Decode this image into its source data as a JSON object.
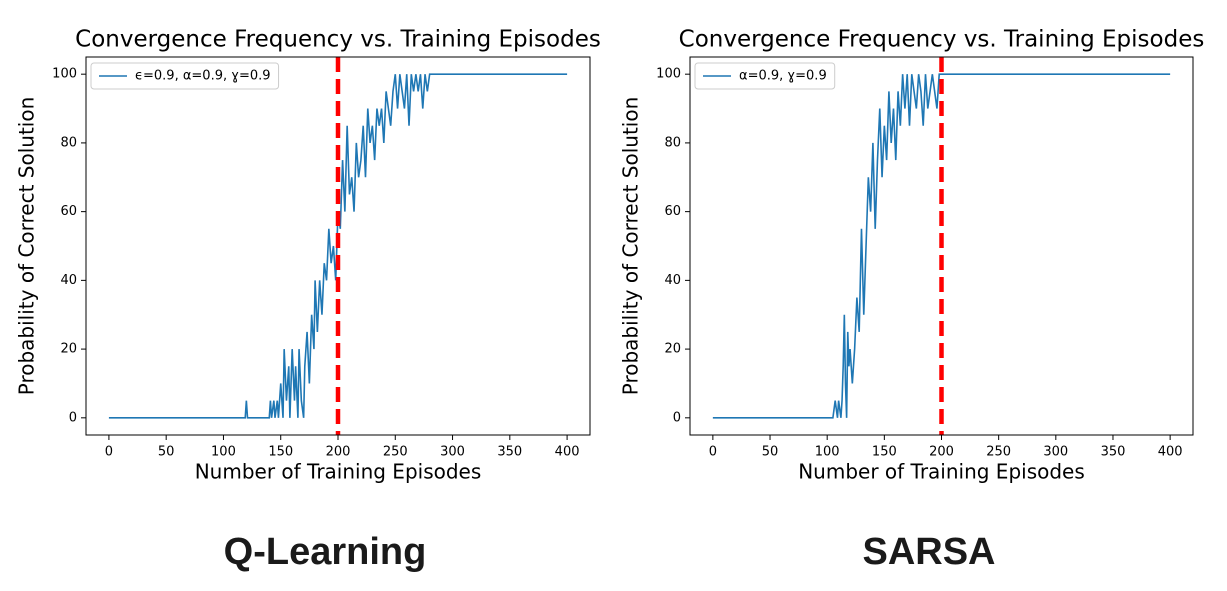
{
  "chart_data": [
    {
      "type": "line",
      "title": "Convergence Frequency vs. Training Episodes",
      "x_label": "Number of Training Episodes",
      "y_label": "Probability of Correct Solution",
      "caption": "Q-Learning",
      "xlim": [
        -20,
        420
      ],
      "ylim": [
        -5,
        105
      ],
      "xticks": [
        0,
        50,
        100,
        150,
        200,
        250,
        300,
        350,
        400
      ],
      "yticks": [
        0,
        20,
        40,
        60,
        80,
        100
      ],
      "legend": "upper left",
      "vline": 200,
      "vline_color": "#ff0000",
      "x": [
        0,
        119,
        120,
        121,
        140,
        141,
        142,
        144,
        145,
        147,
        148,
        150,
        152,
        153,
        155,
        157,
        158,
        160,
        162,
        163,
        165,
        166,
        168,
        170,
        171,
        173,
        175,
        177,
        179,
        180,
        182,
        184,
        186,
        188,
        190,
        192,
        194,
        196,
        198,
        200,
        202,
        204,
        206,
        208,
        210,
        212,
        214,
        216,
        218,
        220,
        222,
        224,
        226,
        228,
        230,
        232,
        234,
        236,
        238,
        240,
        242,
        244,
        246,
        248,
        250,
        252,
        254,
        256,
        258,
        260,
        262,
        264,
        266,
        268,
        270,
        272,
        274,
        276,
        278,
        280,
        400
      ],
      "series": [
        {
          "name": "ϵ=0.9, α=0.9, ɣ=0.9",
          "color": "#1f77b4",
          "values": [
            0,
            0,
            5,
            0,
            0,
            5,
            0,
            5,
            0,
            5,
            0,
            10,
            0,
            20,
            5,
            15,
            0,
            20,
            5,
            15,
            0,
            20,
            5,
            0,
            15,
            25,
            10,
            30,
            20,
            40,
            25,
            40,
            30,
            45,
            40,
            55,
            45,
            50,
            40,
            60,
            55,
            75,
            60,
            85,
            65,
            70,
            60,
            80,
            70,
            75,
            85,
            70,
            90,
            80,
            85,
            75,
            90,
            85,
            90,
            80,
            95,
            90,
            85,
            95,
            100,
            90,
            100,
            95,
            90,
            100,
            85,
            100,
            95,
            100,
            95,
            100,
            90,
            100,
            95,
            100,
            100
          ]
        }
      ]
    },
    {
      "type": "line",
      "title": "Convergence Frequency vs. Training Episodes",
      "x_label": "Number of Training Episodes",
      "y_label": "Probability of Correct Solution",
      "caption": "SARSA",
      "xlim": [
        -20,
        420
      ],
      "ylim": [
        -5,
        105
      ],
      "xticks": [
        0,
        50,
        100,
        150,
        200,
        250,
        300,
        350,
        400
      ],
      "yticks": [
        0,
        20,
        40,
        60,
        80,
        100
      ],
      "legend": "upper left",
      "vline": 200,
      "vline_color": "#ff0000",
      "x": [
        0,
        105,
        107,
        109,
        110,
        112,
        113,
        114,
        115,
        116,
        117,
        118,
        119,
        120,
        122,
        124,
        126,
        128,
        130,
        132,
        134,
        136,
        138,
        140,
        142,
        144,
        146,
        148,
        150,
        152,
        154,
        156,
        158,
        160,
        162,
        164,
        166,
        168,
        170,
        172,
        174,
        176,
        178,
        180,
        182,
        184,
        186,
        188,
        190,
        192,
        194,
        196,
        198,
        200,
        400
      ],
      "series": [
        {
          "name": "α=0.9, ɣ=0.9",
          "color": "#1f77b4",
          "values": [
            0,
            0,
            5,
            0,
            5,
            0,
            5,
            15,
            30,
            10,
            0,
            25,
            15,
            20,
            10,
            20,
            35,
            25,
            55,
            30,
            50,
            70,
            60,
            80,
            55,
            75,
            90,
            70,
            85,
            75,
            95,
            80,
            90,
            75,
            95,
            85,
            100,
            90,
            100,
            85,
            100,
            95,
            90,
            100,
            95,
            85,
            100,
            90,
            95,
            100,
            95,
            90,
            100,
            100,
            100
          ]
        }
      ]
    }
  ]
}
